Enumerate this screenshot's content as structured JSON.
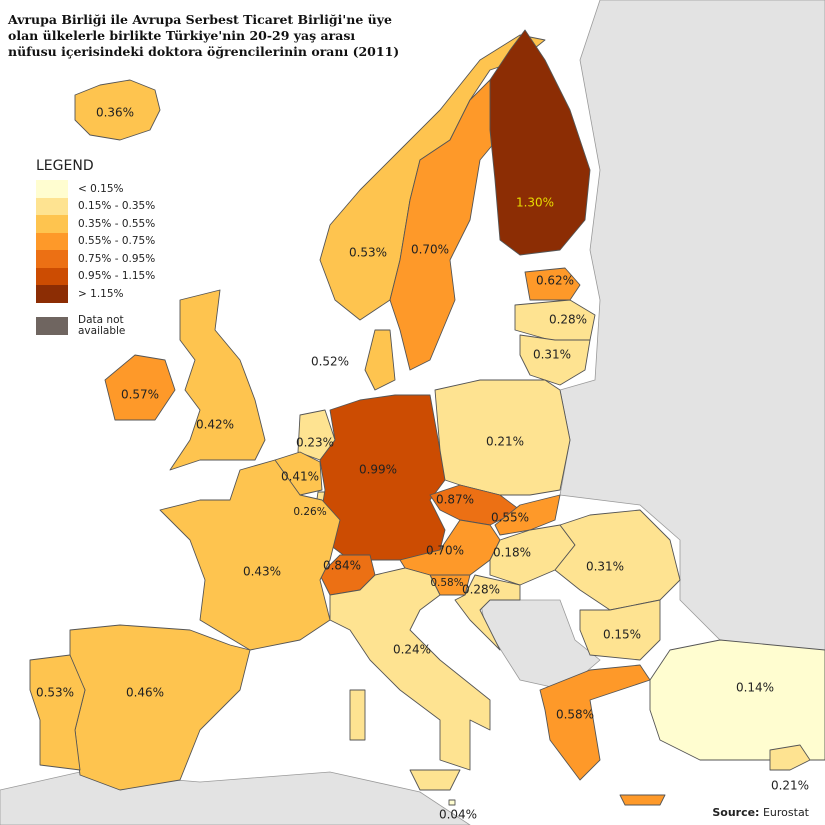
{
  "title": "Avrupa Birliği ile Avrupa Serbest Ticaret Birliği'ne üye olan ülkelerle birlikte Türkiye'nin 20-29 yaş arası nüfusu içerisindeki doktora öğrencilerinin oranı (2011)",
  "legend": {
    "heading": "LEGEND",
    "classes": [
      {
        "label": "< 0.15%",
        "color": "#fffdd0"
      },
      {
        "label": "0.15% - 0.35%",
        "color": "#fee391"
      },
      {
        "label": "0.35% - 0.55%",
        "color": "#fec44f"
      },
      {
        "label": "0.55% - 0.75%",
        "color": "#fe9929"
      },
      {
        "label": "0.75% - 0.95%",
        "color": "#ec7014"
      },
      {
        "label": "0.95% - 1.15%",
        "color": "#cc4c02"
      },
      {
        "label": "> 1.15%",
        "color": "#8c2d04"
      }
    ],
    "not_available": {
      "label": "Data not available",
      "color": "#6f6560"
    }
  },
  "colors": {
    "sea": "#ffffff",
    "no_data_land": "#e3e3e3",
    "border": "#555555",
    "highlight_label": "#e8dc00"
  },
  "regions": {
    "iceland": {
      "value": "0.36%",
      "class": 2
    },
    "norway": {
      "value": "0.53%",
      "class": 2
    },
    "sweden": {
      "value": "0.70%",
      "class": 3
    },
    "finland": {
      "value": "1.30%",
      "class": 6
    },
    "estonia": {
      "value": "0.62%",
      "class": 3
    },
    "latvia": {
      "value": "0.28%",
      "class": 1
    },
    "lithuania": {
      "value": "0.31%",
      "class": 1
    },
    "denmark": {
      "value": "0.52%",
      "class": 2
    },
    "ireland": {
      "value": "0.57%",
      "class": 3
    },
    "uk": {
      "value": "0.42%",
      "class": 2
    },
    "netherlands": {
      "value": "0.23%",
      "class": 1
    },
    "belgium": {
      "value": "0.41%",
      "class": 2
    },
    "luxembourg": {
      "value": "0.26%",
      "class": 1
    },
    "germany": {
      "value": "0.99%",
      "class": 5
    },
    "poland": {
      "value": "0.21%",
      "class": 1
    },
    "czechia": {
      "value": "0.87%",
      "class": 4
    },
    "slovakia": {
      "value": "0.55%",
      "class": 3
    },
    "austria": {
      "value": "0.70%",
      "class": 3
    },
    "hungary": {
      "value": "0.18%",
      "class": 1
    },
    "switzerland": {
      "value": "0.84%",
      "class": 4
    },
    "france": {
      "value": "0.43%",
      "class": 2
    },
    "slovenia": {
      "value": "0.58%",
      "class": 3
    },
    "croatia": {
      "value": "0.28%",
      "class": 1
    },
    "romania": {
      "value": "0.31%",
      "class": 1
    },
    "bulgaria": {
      "value": "0.15%",
      "class": 1
    },
    "italy": {
      "value": "0.24%",
      "class": 1
    },
    "spain": {
      "value": "0.46%",
      "class": 2
    },
    "portugal": {
      "value": "0.53%",
      "class": 2
    },
    "greece": {
      "value": "0.58%",
      "class": 3
    },
    "turkey": {
      "value": "0.14%",
      "class": 0
    },
    "cyprus": {
      "value": "0.21%",
      "class": 1
    },
    "malta": {
      "value": "0.04%",
      "class": 0
    }
  },
  "source": {
    "label": "Source:",
    "value": "Eurostat"
  }
}
